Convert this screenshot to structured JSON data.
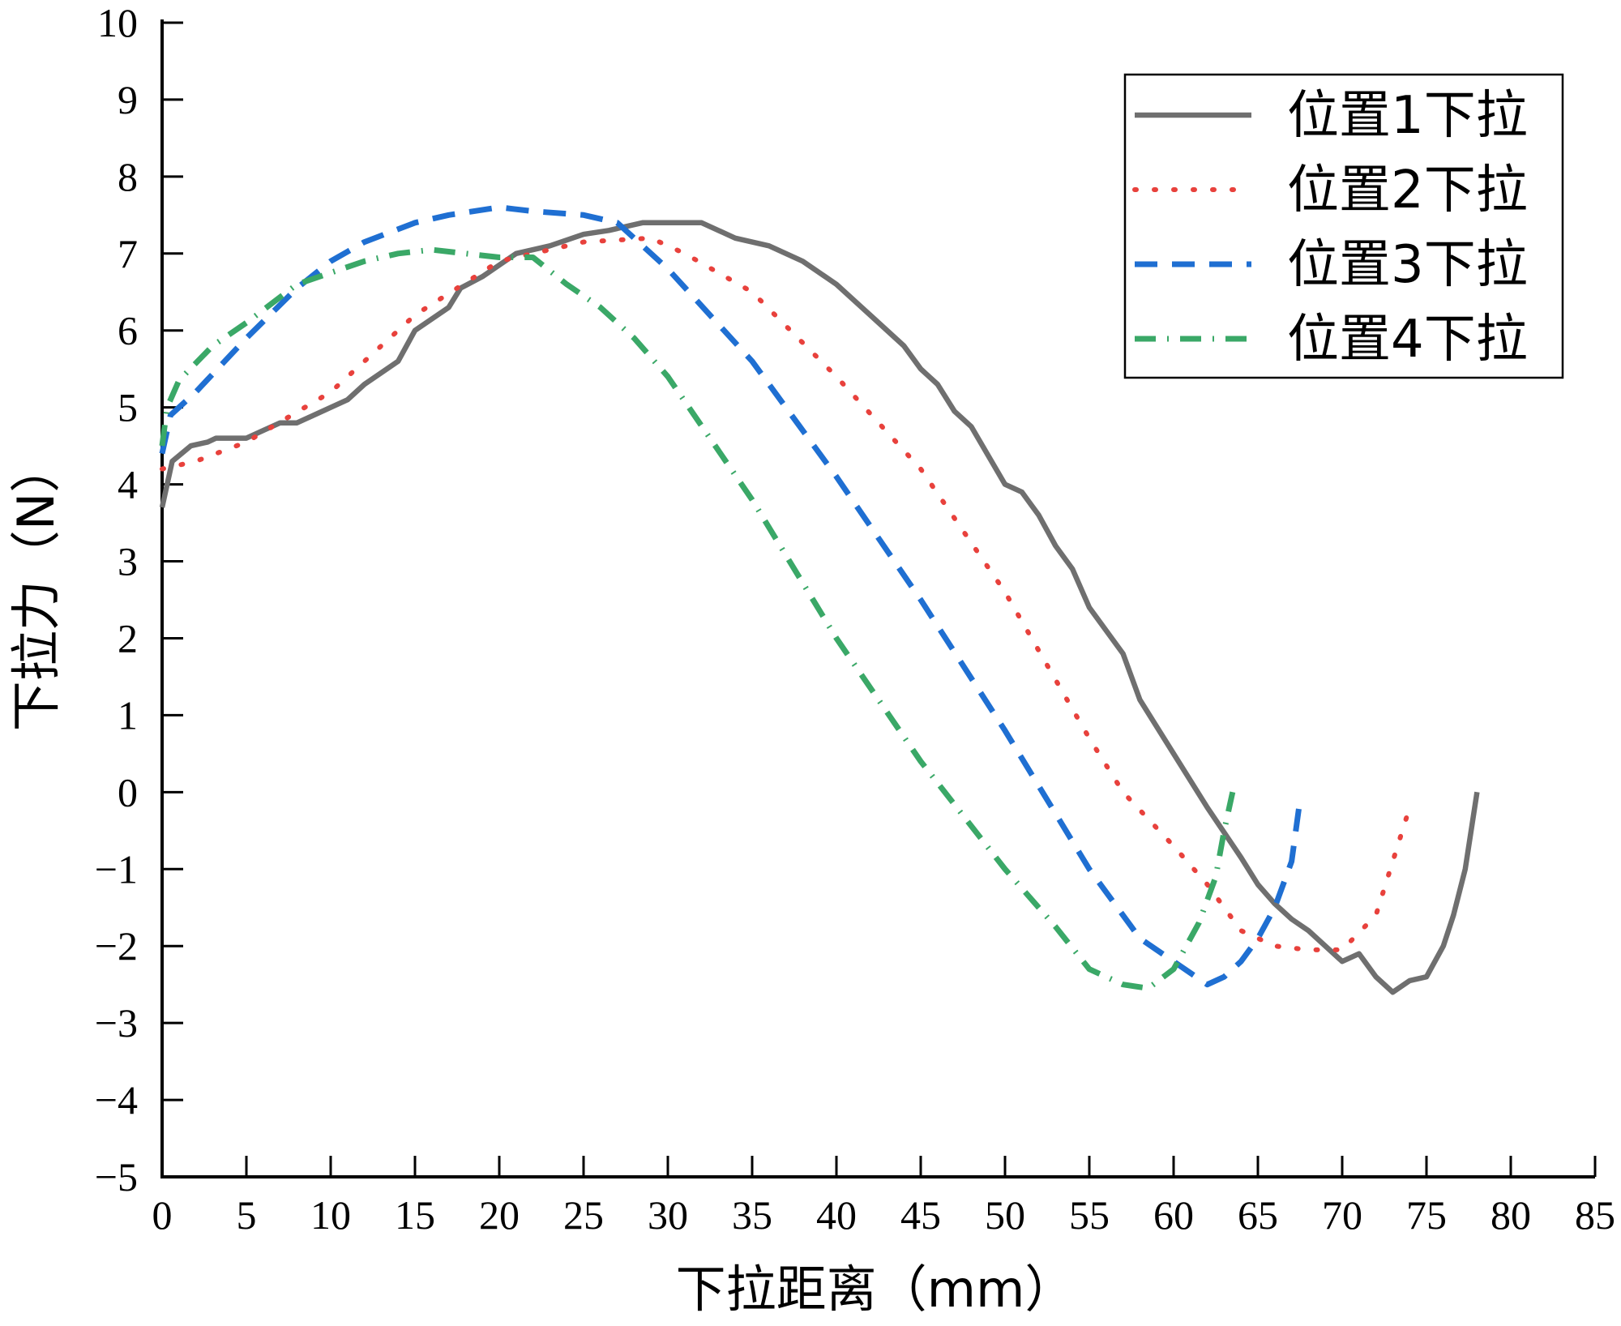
{
  "chart_data": {
    "type": "line",
    "title": "",
    "xlabel": "下拉距离（mm）",
    "ylabel": "下拉力（N）",
    "xlim": [
      0,
      85
    ],
    "ylim": [
      -5,
      10
    ],
    "x_ticks": [
      0,
      5,
      10,
      15,
      20,
      25,
      30,
      35,
      40,
      45,
      50,
      55,
      60,
      65,
      70,
      75,
      80,
      85
    ],
    "y_ticks": [
      -5,
      -4,
      -3,
      -2,
      -1,
      0,
      1,
      2,
      3,
      4,
      5,
      6,
      7,
      8,
      9,
      10
    ],
    "grid": false,
    "legend_position": "top-right",
    "series": [
      {
        "name": "位置1下拉",
        "color": "#6f6f6f",
        "line_style": "solid",
        "x": [
          0,
          0.6,
          1.7,
          2.7,
          3.2,
          5,
          6,
          7,
          8,
          10,
          11,
          12,
          13,
          14,
          15,
          17,
          17.7,
          19,
          21,
          23,
          25,
          26.5,
          28.5,
          32,
          33,
          34,
          35,
          36,
          37,
          38,
          40,
          42,
          43,
          44,
          45,
          46,
          47,
          48,
          50,
          51,
          52,
          53,
          54,
          55,
          56,
          57,
          58,
          60,
          62,
          64,
          65,
          66,
          67,
          68,
          69,
          70,
          71,
          72,
          73,
          74,
          75,
          76,
          76.6,
          77.3,
          78
        ],
        "y": [
          3.7,
          4.3,
          4.5,
          4.55,
          4.6,
          4.6,
          4.7,
          4.8,
          4.8,
          5.0,
          5.1,
          5.3,
          5.45,
          5.6,
          6.0,
          6.3,
          6.55,
          6.7,
          7.0,
          7.1,
          7.25,
          7.3,
          7.4,
          7.4,
          7.3,
          7.2,
          7.15,
          7.1,
          7.0,
          6.9,
          6.6,
          6.2,
          6.0,
          5.8,
          5.5,
          5.3,
          4.95,
          4.75,
          4.0,
          3.9,
          3.6,
          3.2,
          2.9,
          2.4,
          2.1,
          1.8,
          1.2,
          0.5,
          -0.2,
          -0.85,
          -1.2,
          -1.45,
          -1.65,
          -1.8,
          -2.0,
          -2.2,
          -2.1,
          -2.4,
          -2.6,
          -2.45,
          -2.4,
          -2.0,
          -1.6,
          -1.0,
          0.0
        ]
      },
      {
        "name": "位置2下拉",
        "color": "#e8413c",
        "line_style": "dotted",
        "x": [
          0,
          2,
          5,
          10,
          15,
          20,
          22,
          25,
          29,
          31,
          35,
          40,
          45,
          50,
          55,
          57,
          60,
          62,
          64,
          66,
          68,
          70,
          72,
          74
        ],
        "y": [
          4.2,
          4.3,
          4.55,
          5.2,
          6.2,
          6.9,
          7.0,
          7.15,
          7.2,
          7.0,
          6.5,
          5.4,
          4.2,
          2.6,
          0.7,
          0.0,
          -0.7,
          -1.2,
          -1.8,
          -2.0,
          -2.05,
          -2.05,
          -1.6,
          -0.2
        ]
      },
      {
        "name": "位置3下拉",
        "color": "#1f6fd2",
        "line_style": "dashed",
        "x": [
          0,
          0.5,
          2,
          5,
          8,
          10,
          12,
          15,
          17,
          20,
          22,
          25,
          27,
          30,
          35,
          40,
          45,
          50,
          55,
          58,
          60,
          62,
          63,
          64,
          65,
          66,
          67,
          67.5
        ],
        "y": [
          4.4,
          4.9,
          5.2,
          5.9,
          6.55,
          6.9,
          7.15,
          7.4,
          7.5,
          7.6,
          7.55,
          7.5,
          7.4,
          6.8,
          5.6,
          4.1,
          2.5,
          0.8,
          -1.0,
          -1.9,
          -2.2,
          -2.5,
          -2.4,
          -2.2,
          -1.9,
          -1.5,
          -0.9,
          -0.1
        ]
      },
      {
        "name": "位置4下拉",
        "color": "#3aa867",
        "line_style": "dash-dot",
        "x": [
          0,
          0.3,
          1,
          3,
          5,
          8,
          10,
          12,
          14,
          16,
          18,
          20,
          22,
          24,
          26,
          28,
          30,
          35,
          40,
          45,
          50,
          53,
          55,
          57,
          58.5,
          60,
          61.5,
          62.5,
          63,
          63.5
        ],
        "y": [
          4.5,
          5.0,
          5.35,
          5.8,
          6.1,
          6.6,
          6.75,
          6.9,
          7.0,
          7.05,
          7.0,
          6.95,
          6.95,
          6.6,
          6.3,
          5.9,
          5.4,
          3.8,
          2.0,
          0.4,
          -1.0,
          -1.75,
          -2.3,
          -2.5,
          -2.55,
          -2.3,
          -1.7,
          -1.1,
          -0.5,
          0.0
        ]
      }
    ]
  }
}
